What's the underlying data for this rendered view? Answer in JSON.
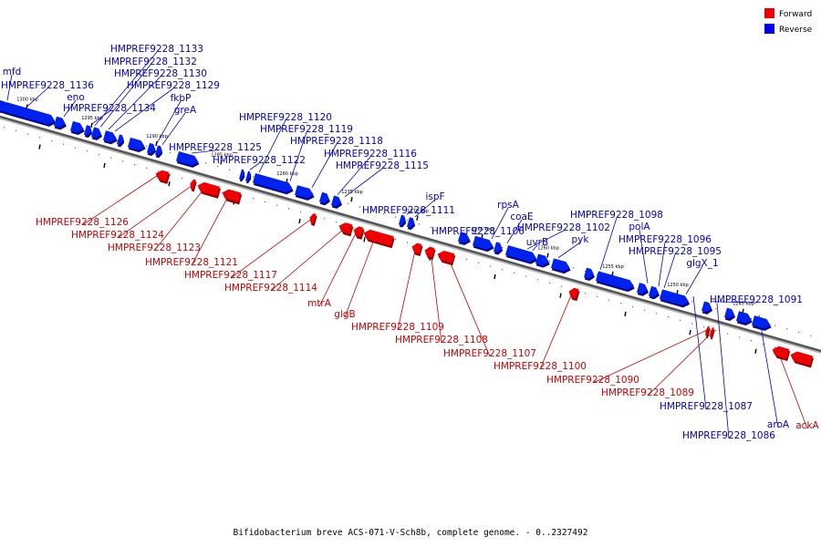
{
  "legend": {
    "forward": {
      "label": "Forward",
      "color": "#ee0000"
    },
    "reverse": {
      "label": "Reverse",
      "color": "#0000ee"
    }
  },
  "caption": "Bifidobacterium breve ACS-071-V-Sch8b, complete genome. - 0..2327492",
  "ticks": [
    "1300 kbp",
    "1295 kbp",
    "1290 kbp",
    "1285 kbp",
    "1280 kbp",
    "1275 kbp",
    "1270 kbp",
    "1265 kbp",
    "1260 kbp",
    "1255 kbp",
    "1250 kbp",
    "1245 kbp"
  ],
  "reverse_genes": [
    "mfd",
    "HMPREF9228_1136",
    "eno",
    "HMPREF9228_1134",
    "HMPREF9228_1133",
    "HMPREF9228_1132",
    "HMPREF9228_1130",
    "HMPREF9228_1129",
    "fkbP",
    "greA",
    "HMPREF9228_1125",
    "HMPREF9228_1122",
    "HMPREF9228_1120",
    "HMPREF9228_1119",
    "HMPREF9228_1118",
    "HMPREF9228_1116",
    "HMPREF9228_1115",
    "HMPREF9228_1111",
    "ispF",
    "HMPREF9228_1106",
    "rpsA",
    "coaE",
    "HMPREF9228_1102",
    "uvrB",
    "pyk",
    "HMPREF9228_1098",
    "polA",
    "HMPREF9228_1096",
    "HMPREF9228_1095",
    "glgX_1",
    "HMPREF9228_1091",
    "HMPREF9228_1087",
    "HMPREF9228_1086",
    "aroA"
  ],
  "forward_genes": [
    "HMPREF9228_1126",
    "HMPREF9228_1124",
    "HMPREF9228_1123",
    "HMPREF9228_1121",
    "HMPREF9228_1117",
    "HMPREF9228_1114",
    "mtrA",
    "glgB",
    "HMPREF9228_1109",
    "HMPREF9228_1108",
    "HMPREF9228_1107",
    "HMPREF9228_1100",
    "HMPREF9228_1090",
    "HMPREF9228_1089",
    "ackA"
  ]
}
